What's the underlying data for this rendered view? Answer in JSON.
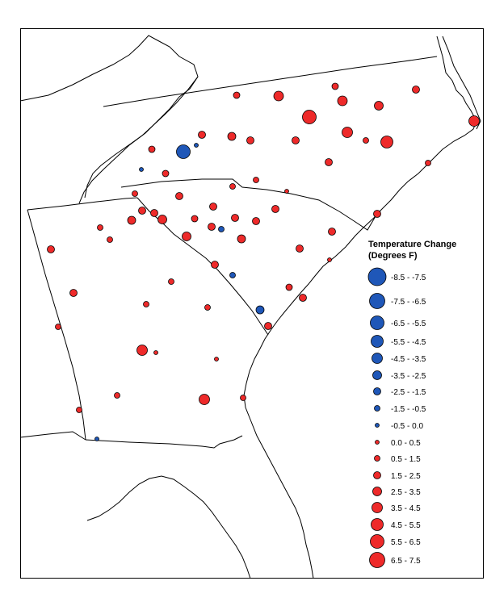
{
  "legend": {
    "title_line1": "Temperature Change",
    "title_line2": "(Degrees F)",
    "entries": [
      {
        "label": "-8.5 - -7.5",
        "color": "#1f57b8",
        "class": "cooling"
      },
      {
        "label": "-7.5 - -6.5",
        "color": "#1f57b8",
        "class": "cooling"
      },
      {
        "label": "-6.5 - -5.5",
        "color": "#1f57b8",
        "class": "cooling"
      },
      {
        "label": "-5.5 - -4.5",
        "color": "#1f57b8",
        "class": "cooling"
      },
      {
        "label": "-4.5 - -3.5",
        "color": "#1f57b8",
        "class": "cooling"
      },
      {
        "label": "-3.5 - -2.5",
        "color": "#1f57b8",
        "class": "cooling"
      },
      {
        "label": "-2.5 - -1.5",
        "color": "#1f57b8",
        "class": "cooling"
      },
      {
        "label": "-1.5 - -0.5",
        "color": "#1f57b8",
        "class": "cooling"
      },
      {
        "label": "-0.5 - 0.0",
        "color": "#1f57b8",
        "class": "cooling"
      },
      {
        "label": "0.0 - 0.5",
        "color": "#ee2a2a",
        "class": "warming"
      },
      {
        "label": "0.5 - 1.5",
        "color": "#ee2a2a",
        "class": "warming"
      },
      {
        "label": "1.5 - 2.5",
        "color": "#ee2a2a",
        "class": "warming"
      },
      {
        "label": "2.5 - 3.5",
        "color": "#ee2a2a",
        "class": "warming"
      },
      {
        "label": "3.5 - 4.5",
        "color": "#ee2a2a",
        "class": "warming"
      },
      {
        "label": "4.5 - 5.5",
        "color": "#ee2a2a",
        "class": "warming"
      },
      {
        "label": "5.5 - 6.5",
        "color": "#ee2a2a",
        "class": "warming"
      },
      {
        "label": "6.5 - 7.5",
        "color": "#ee2a2a",
        "class": "warming"
      }
    ]
  },
  "colors": {
    "cooling": "#1f57b8",
    "warming": "#ee2a2a",
    "outline": "#000000",
    "boundary": "#000000"
  }
}
